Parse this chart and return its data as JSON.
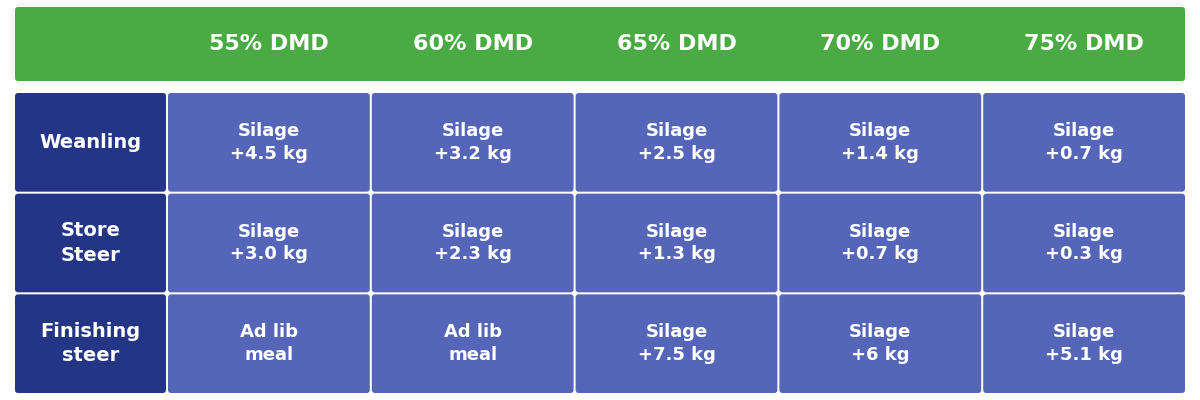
{
  "header_bg_color": "#4aaa43",
  "header_text_color": "#ffffff",
  "row_label_bg_color": "#253585",
  "cell_bg_color": "#5566b8",
  "cell_text_color": "#ffffff",
  "bg_color": "#ffffff",
  "header_labels": [
    "55% DMD",
    "60% DMD",
    "65% DMD",
    "70% DMD",
    "75% DMD"
  ],
  "row_labels": [
    "Weanling",
    "Store\nSteer",
    "Finishing\nsteer"
  ],
  "cell_data": [
    [
      "Silage\n+4.5 kg",
      "Silage\n+3.2 kg",
      "Silage\n+2.5 kg",
      "Silage\n+1.4 kg",
      "Silage\n+0.7 kg"
    ],
    [
      "Silage\n+3.0 kg",
      "Silage\n+2.3 kg",
      "Silage\n+1.3 kg",
      "Silage\n+0.7 kg",
      "Silage\n+0.3 kg"
    ],
    [
      "Ad lib\nmeal",
      "Ad lib\nmeal",
      "Silage\n+7.5 kg",
      "Silage\n+6 kg",
      "Silage\n+5.1 kg"
    ]
  ],
  "header_font_size": 16,
  "row_label_font_size": 14,
  "cell_font_size": 13,
  "figure_width": 12.0,
  "figure_height": 4.0,
  "dpi": 100
}
